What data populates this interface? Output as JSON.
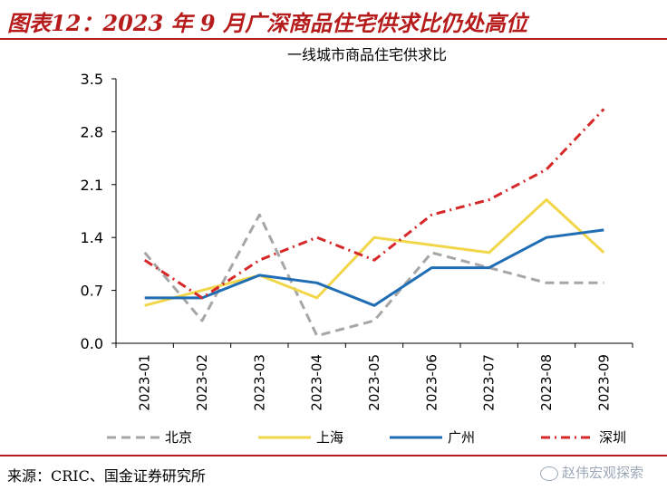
{
  "figure_title": "图表12：2023 年 9 月广深商品住宅供求比仍处高位",
  "source": "来源：CRIC、国金证券研究所",
  "watermark": "赵伟宏观探索",
  "chart_data": {
    "type": "line",
    "title": "一线城市商品住宅供求比",
    "categories": [
      "2023-01",
      "2023-02",
      "2023-03",
      "2023-04",
      "2023-05",
      "2023-06",
      "2023-07",
      "2023-08",
      "2023-09"
    ],
    "ylim": [
      0,
      3.5
    ],
    "yticks": [
      "0.0",
      "0.7",
      "1.4",
      "2.1",
      "2.8",
      "3.5"
    ],
    "grid": false,
    "legend_position": "bottom",
    "series": [
      {
        "name": "北京",
        "color": "#a6a6a6",
        "dash": "dashed",
        "values": [
          1.2,
          0.3,
          1.7,
          0.1,
          0.3,
          1.2,
          1.0,
          0.8,
          0.8
        ]
      },
      {
        "name": "上海",
        "color": "#f2d64a",
        "dash": "solid",
        "values": [
          0.5,
          0.7,
          0.9,
          0.6,
          1.4,
          1.3,
          1.2,
          1.9,
          1.2
        ]
      },
      {
        "name": "广州",
        "color": "#1f6db5",
        "dash": "solid",
        "values": [
          0.6,
          0.6,
          0.9,
          0.8,
          0.5,
          1.0,
          1.0,
          1.4,
          1.5
        ]
      },
      {
        "name": "深圳",
        "color": "#d62828",
        "dash": "dashdot",
        "values": [
          1.1,
          0.6,
          1.1,
          1.4,
          1.1,
          1.7,
          1.9,
          2.3,
          3.1
        ]
      }
    ]
  }
}
